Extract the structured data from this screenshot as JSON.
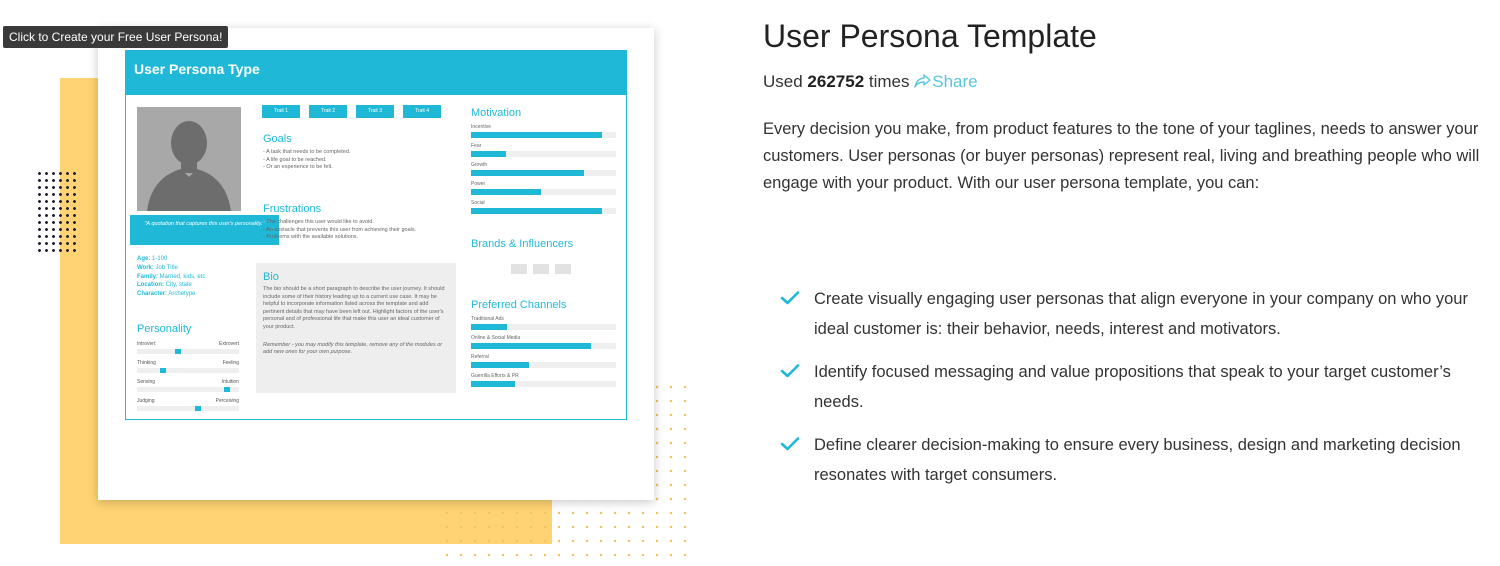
{
  "tooltip": "Click to Create your Free User Persona!",
  "persona": {
    "header": "User Persona Type",
    "quote": "\"A quotation that captures this user's personality.\"",
    "facts": [
      {
        "key": "Age:",
        "value": " 1-100"
      },
      {
        "key": "Work:",
        "value": " Job Title"
      },
      {
        "key": "Family:",
        "value": " Married, kids, etc"
      },
      {
        "key": "Location:",
        "value": " City, state"
      },
      {
        "key": "Character:",
        "value": " Archetype"
      }
    ],
    "personality": {
      "title": "Personality",
      "traits": [
        {
          "left": "Introvert",
          "right": "Extrovert",
          "value": 0.4
        },
        {
          "left": "Thinking",
          "right": "Feeling",
          "value": 0.25
        },
        {
          "left": "Sensing",
          "right": "Intuition",
          "value": 0.88
        },
        {
          "left": "Judging",
          "right": "Perceiving",
          "value": 0.6
        }
      ]
    },
    "trait_tags": [
      "Trait 1",
      "Trait 2",
      "Trait 3",
      "Trait 4"
    ],
    "goals": {
      "title": "Goals",
      "items": [
        "A task that needs to be completed.",
        "A life goal to be reached.",
        "Or an experience to be felt."
      ]
    },
    "frustrations": {
      "title": "Frustrations",
      "items": [
        "The challenges this user would like to avoid.",
        "An obstacle that prevents this user from achieving their goals.",
        "Problems with the available solutions."
      ]
    },
    "bio": {
      "title": "Bio",
      "text": "The bio should be a short paragraph to describe the user journey. It should include some of their history leading up to a current use case. It may be helpful to incorporate information listed across the template and add pertinent details that may have been left out. Highlight factors of the user's personal and of professional life that make this user an ideal customer of your product.",
      "remember": "Remember - you may modify this template, remove any of the modules or add new ones for your own purpose."
    },
    "motivation": {
      "title": "Motivation",
      "items": [
        {
          "label": "Incentive",
          "value": 0.9
        },
        {
          "label": "Fear",
          "value": 0.24
        },
        {
          "label": "Growth",
          "value": 0.78
        },
        {
          "label": "Power",
          "value": 0.48
        },
        {
          "label": "Social",
          "value": 0.9
        }
      ]
    },
    "brands": {
      "title": "Brands & Influencers"
    },
    "channels": {
      "title": "Preferred Channels",
      "items": [
        {
          "label": "Traditional Ads",
          "value": 0.25
        },
        {
          "label": "Online & Social Media",
          "value": 0.83
        },
        {
          "label": "Referral",
          "value": 0.4
        },
        {
          "label": "Guerrilla Efforts & PR",
          "value": 0.3
        }
      ]
    }
  },
  "info": {
    "title": "User Persona Template",
    "used_prefix": "Used ",
    "used_count": "262752",
    "used_suffix": " times",
    "share": "Share",
    "description": "Every decision you make, from product features to the tone of your taglines, needs to answer your customers. User personas (or buyer personas) represent real, living and breathing people who will engage with your product. With our user persona template, you can:",
    "benefits": [
      "Create visually engaging user personas that align everyone in your company on who your ideal customer is: their behavior, needs, interest and motivators.",
      "Identify focused messaging and value propositions that speak to your target customer’s needs.",
      "Define clearer decision-making to ensure every business, design and marketing decision resonates with target consumers."
    ],
    "accent": "#1fb9d7"
  }
}
